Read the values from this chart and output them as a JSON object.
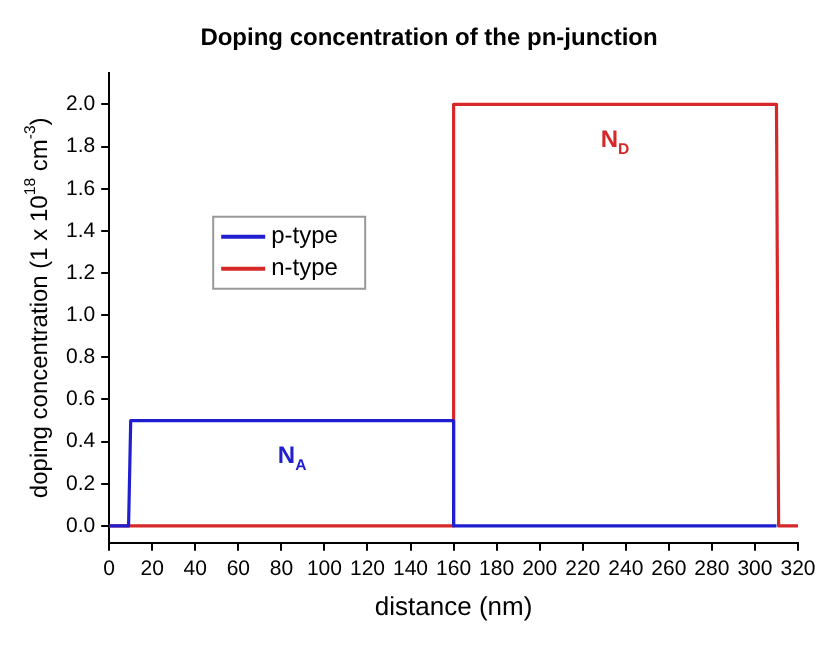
{
  "chart_data": {
    "type": "line",
    "title": "Doping concentration of the pn-junction",
    "xlabel": "distance (nm)",
    "ylabel": "doping concentration (1 x 10$^{18}$ cm$^{-3}$)",
    "series": [
      {
        "name": "p-type",
        "color": "#1f1fd0",
        "x": [
          0,
          9,
          10,
          160,
          160,
          310
        ],
        "values": [
          0,
          0,
          0.5,
          0.5,
          0,
          0
        ]
      },
      {
        "name": "n-type",
        "color": "#d62828",
        "x": [
          0,
          160,
          160,
          310,
          311,
          320
        ],
        "values": [
          0,
          0,
          2.0,
          2.0,
          0,
          0
        ]
      }
    ],
    "annotations": [
      "N$_{A}$",
      "N$_{D}$"
    ],
    "xlim": [
      0,
      320
    ],
    "xticks": [
      0,
      20,
      40,
      60,
      80,
      100,
      120,
      140,
      160,
      180,
      200,
      220,
      240,
      260,
      280,
      300,
      320
    ],
    "ylim": [
      -0.08,
      2.15
    ],
    "yticks": [
      {
        "value": 0,
        "label": "0.0"
      },
      {
        "value": 0.2,
        "label": "0.2"
      },
      {
        "value": 0.4,
        "label": "0.4"
      },
      {
        "value": 0.6,
        "label": "0.6"
      },
      {
        "value": 0.8,
        "label": "0.8"
      },
      {
        "value": 1.0,
        "label": "1.0"
      },
      {
        "value": 1.2,
        "label": "1.2"
      },
      {
        "value": 1.4,
        "label": "1.4"
      },
      {
        "value": 1.6,
        "label": "1.6"
      },
      {
        "value": 1.8,
        "label": "1.8"
      },
      {
        "value": 2.0,
        "label": "2.0"
      }
    ],
    "grid": false,
    "legend": "top left",
    "marker": "none",
    "line_style": "solid"
  }
}
